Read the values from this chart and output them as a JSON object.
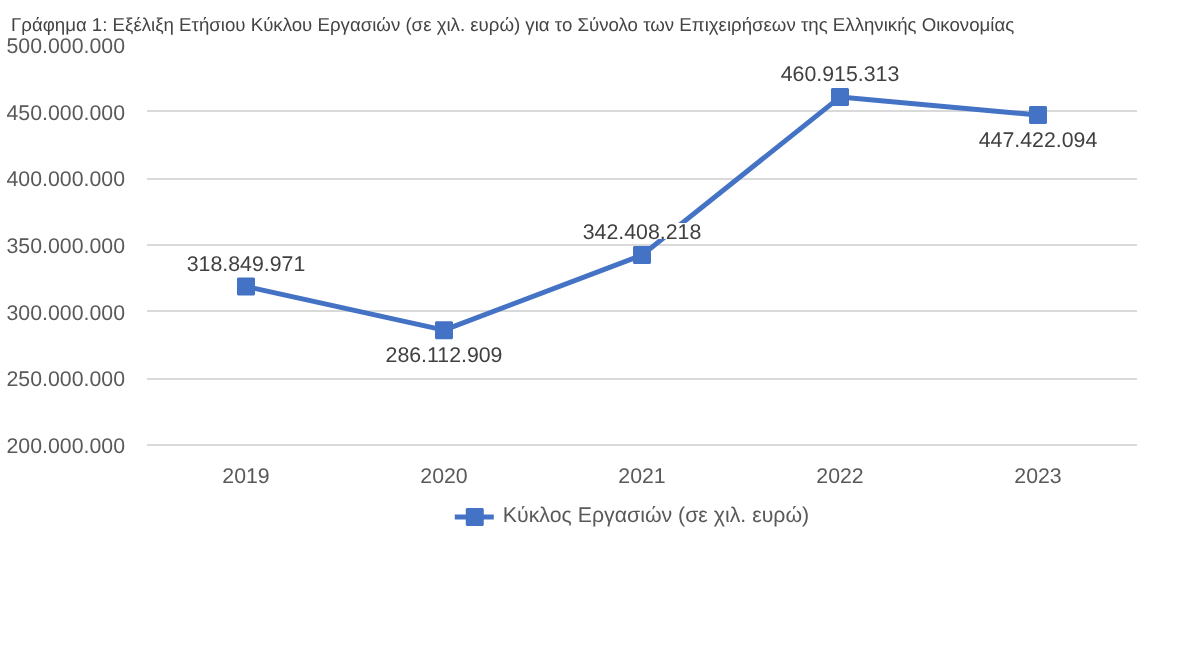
{
  "chart_data": {
    "type": "line",
    "title": "Γράφημα 1: Εξέλιξη Ετήσιου Κύκλου Εργασιών (σε χιλ. ευρώ) για το Σύνολο των Επιχειρήσεων της Ελληνικής Οικονομίας",
    "categories": [
      "2019",
      "2020",
      "2021",
      "2022",
      "2023"
    ],
    "series": [
      {
        "name": "Κύκλος Εργασιών (σε χιλ. ευρώ)",
        "color": "#4472c4",
        "values": [
          318849971,
          286112909,
          342408218,
          460915313,
          447422094
        ]
      }
    ],
    "ylim": [
      200000000,
      500000000
    ],
    "yticks": [
      {
        "value": 200000000,
        "label": "200.000.000"
      },
      {
        "value": 250000000,
        "label": "250.000.000"
      },
      {
        "value": 300000000,
        "label": "300.000.000"
      },
      {
        "value": 350000000,
        "label": "350.000.000"
      },
      {
        "value": 400000000,
        "label": "400.000.000"
      },
      {
        "value": 450000000,
        "label": "450.000.000"
      },
      {
        "value": 500000000,
        "label": "500.000.000"
      }
    ],
    "grid": "y",
    "legend": "bottom",
    "marker": "square",
    "line_style": "solid",
    "value_labels": [
      "318.849.971",
      "286.112.909",
      "342.408.218",
      "460.915.313",
      "447.422.094"
    ]
  }
}
